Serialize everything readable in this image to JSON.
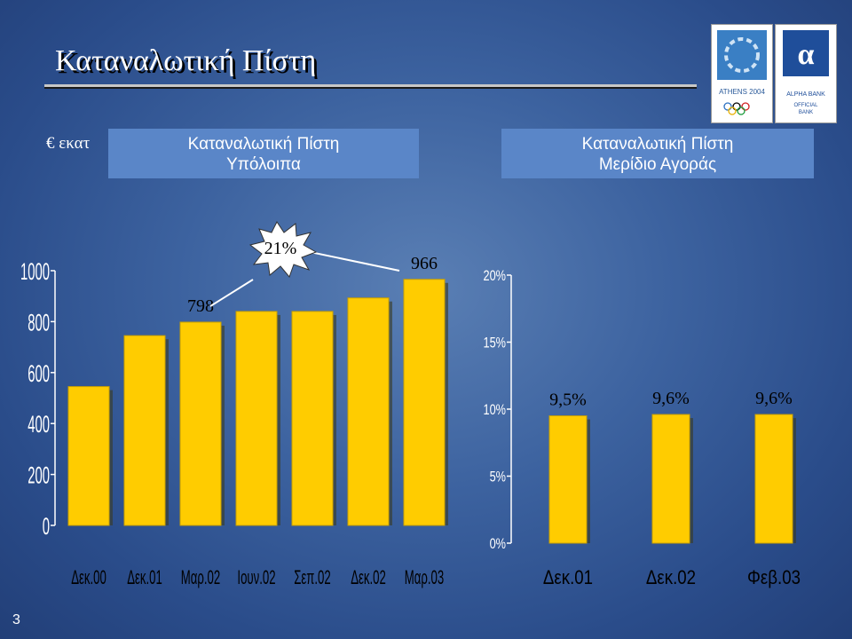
{
  "slide": {
    "title": "Καταναλωτική  Πίστη",
    "unit_label": "€ εκατ",
    "page_number": "3",
    "left_header": {
      "line1": "Καταναλωτική Πίστη",
      "line2": "Υπόλοιπα"
    },
    "right_header": {
      "line1": "Καταναλωτική Πίστη",
      "line2": "Μερίδιο Αγοράς"
    },
    "logos": {
      "athens": {
        "text": "ATHENS 2004"
      },
      "alpha": {
        "text1": "ALPHA BANK",
        "text2": "OFFICIAL",
        "text3": "BANK"
      }
    },
    "growth_callout": "21%"
  },
  "chart_data": [
    {
      "type": "bar",
      "categories": [
        "Δεκ.00",
        "Δεκ.01",
        "Μαρ.02",
        "Ιουν.02",
        "Σεπ.02",
        "Δεκ.02",
        "Μαρ.03"
      ],
      "values": [
        545,
        745,
        798,
        840,
        840,
        893,
        966
      ],
      "data_labels": [
        "",
        "",
        "798",
        "",
        "",
        "",
        "966"
      ],
      "yticks": [
        "0",
        "200",
        "400",
        "600",
        "800",
        "1000"
      ],
      "ylim": [
        0,
        1000
      ],
      "bar_color": "#ffcc00"
    },
    {
      "type": "bar",
      "categories": [
        "Δεκ.01",
        "Δεκ.02",
        "Φεβ.03"
      ],
      "values": [
        9.5,
        9.6,
        9.6
      ],
      "data_labels": [
        "9,5%",
        "9,6%",
        "9,6%"
      ],
      "yticks": [
        "0%",
        "5%",
        "10%",
        "15%",
        "20%"
      ],
      "ylim": [
        0,
        20
      ],
      "bar_color": "#ffcc00"
    }
  ]
}
